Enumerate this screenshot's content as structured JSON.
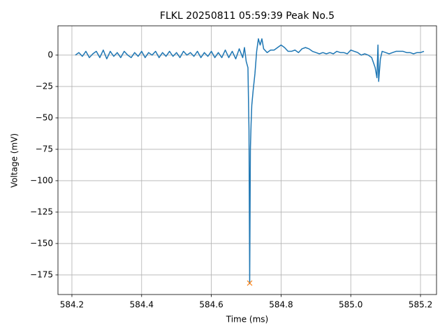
{
  "chart_data": {
    "type": "line",
    "title": "FLKL 20250811 05:59:39 Peak No.5",
    "x_label": "Time (ms)",
    "y_label": "Voltage (mV)",
    "x": [
      584.21,
      584.22,
      584.23,
      584.24,
      584.25,
      584.26,
      584.27,
      584.28,
      584.29,
      584.3,
      584.31,
      584.32,
      584.33,
      584.34,
      584.35,
      584.36,
      584.37,
      584.38,
      584.39,
      584.4,
      584.41,
      584.42,
      584.43,
      584.44,
      584.45,
      584.46,
      584.47,
      584.48,
      584.49,
      584.5,
      584.51,
      584.52,
      584.53,
      584.54,
      584.55,
      584.56,
      584.57,
      584.58,
      584.59,
      584.6,
      584.61,
      584.62,
      584.63,
      584.64,
      584.65,
      584.66,
      584.67,
      584.68,
      584.69,
      584.695,
      584.7,
      584.705,
      584.708,
      584.71,
      584.712,
      584.714,
      584.716,
      584.72,
      584.725,
      584.73,
      584.735,
      584.74,
      584.745,
      584.75,
      584.76,
      584.77,
      584.78,
      584.79,
      584.8,
      584.81,
      584.82,
      584.83,
      584.84,
      584.85,
      584.86,
      584.87,
      584.88,
      584.89,
      584.9,
      584.91,
      584.92,
      584.93,
      584.94,
      584.95,
      584.96,
      584.97,
      584.98,
      584.99,
      585.0,
      585.01,
      585.02,
      585.03,
      585.04,
      585.05,
      585.06,
      585.07,
      585.075,
      585.078,
      585.08,
      585.085,
      585.09,
      585.1,
      585.11,
      585.12,
      585.13,
      585.14,
      585.15,
      585.16,
      585.17,
      585.18,
      585.19,
      585.2,
      585.21
    ],
    "series": [
      {
        "color": "#1f77b4",
        "values": [
          0,
          2,
          -1,
          3,
          -2,
          1,
          3,
          -2,
          4,
          -3,
          3,
          -1,
          2,
          -2,
          3,
          0,
          -2,
          2,
          -1,
          3,
          -2,
          2,
          0,
          3,
          -2,
          2,
          -1,
          3,
          -1,
          2,
          -2,
          3,
          0,
          2,
          -1,
          3,
          -2,
          2,
          -1,
          3,
          -2,
          2,
          -2,
          4,
          -2,
          3,
          -3,
          5,
          -2,
          6,
          -5,
          -10,
          -60,
          -182,
          -75,
          -55,
          -40,
          -28,
          -15,
          3,
          13,
          8,
          13,
          5,
          2,
          4,
          4,
          6,
          8,
          6,
          3,
          3,
          4,
          2,
          5,
          6,
          5,
          3,
          2,
          1,
          2,
          1,
          2,
          1,
          3,
          2,
          2,
          1,
          4,
          3,
          2,
          0,
          1,
          0,
          -2,
          -10,
          -18,
          8,
          -21,
          -3,
          3,
          2,
          1,
          2,
          3,
          3,
          3,
          2,
          2,
          1,
          2,
          2,
          3
        ]
      }
    ],
    "peak": {
      "x": 584.71,
      "y": -181.5,
      "color": "#ff7f0e"
    },
    "xlim": [
      584.16,
      585.246
    ],
    "xticks": [
      584.2,
      584.4,
      584.6,
      584.8,
      {
        "value": 585,
        "label": "585.0"
      },
      585.2
    ],
    "ylim": [
      -190.6,
      23.3
    ],
    "yticks": [
      0,
      {
        "value": -25,
        "label": "−25"
      },
      {
        "value": -50,
        "label": "−50"
      },
      {
        "value": -75,
        "label": "−75"
      },
      {
        "value": -100,
        "label": "−100"
      },
      {
        "value": -125,
        "label": "−125"
      },
      {
        "value": -150,
        "label": "−150"
      },
      {
        "value": -175,
        "label": "−175"
      }
    ],
    "grid": true
  }
}
